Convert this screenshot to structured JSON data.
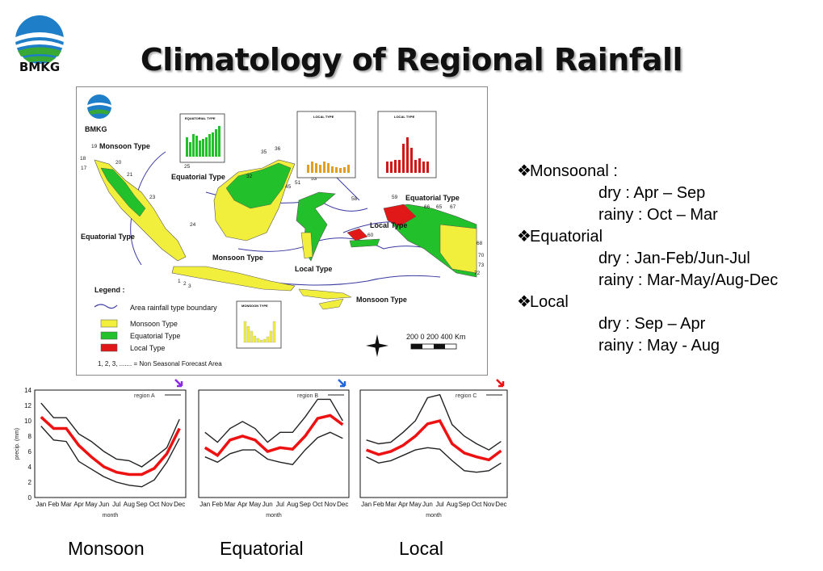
{
  "logo": {
    "text": "BMKG",
    "icon": "bmkg-logo-icon"
  },
  "title": "Climatology of Regional Rainfall",
  "map": {
    "logo_text": "BMKG",
    "labels": {
      "monsoon_nw": "Monsoon Type",
      "equatorial_w": "Equatorial Type",
      "equatorial_c": "Equatorial Type",
      "monsoon_c": "Monsoon Type",
      "local_sul": "Local Type",
      "local_pap": "Local Type",
      "equatorial_e": "Equatorial Type",
      "monsoon_se": "Monsoon Type"
    },
    "inset_titles": [
      "EQUATORIAL TYPE",
      "LOCAL TYPE",
      "LOCAL TYPE",
      "MONSOON TYPE"
    ],
    "legend": {
      "title": "Legend :",
      "boundary": "Area rainfall type boundary",
      "monsoon": "Monsoon Type",
      "equatorial": "Equatorial Type",
      "local": "Local Type",
      "footnote": "1, 2, 3, ....... = Non Seasonal Forecast Area"
    },
    "scale": {
      "label": "200   0   200 400   Km"
    },
    "colors": {
      "monsoon": "#f2ee3c",
      "equatorial": "#22c02a",
      "local": "#e01818",
      "boundary": "#3a3aa0"
    }
  },
  "description": [
    {
      "kind": "heading",
      "text": "Monsoonal :"
    },
    {
      "kind": "sub",
      "text": "dry : Apr – Sep"
    },
    {
      "kind": "sub",
      "text": "rainy : Oct – Mar"
    },
    {
      "kind": "heading",
      "text": "Equatorial"
    },
    {
      "kind": "sub",
      "text": "dry : Jan-Feb/Jun-Jul"
    },
    {
      "kind": "sub",
      "text": "rainy : Mar-May/Aug-Dec"
    },
    {
      "kind": "heading",
      "text": "Local"
    },
    {
      "kind": "sub",
      "text": "dry : Sep – Apr"
    },
    {
      "kind": "sub",
      "text": "rainy : May - Aug"
    }
  ],
  "captions": [
    "Monsoon",
    "Equatorial",
    "Local"
  ],
  "chart_data": [
    {
      "type": "line",
      "legend": "region A",
      "arrow_color": "#8a2be2",
      "xlabel": "month",
      "ylabel": "precip. (mm)",
      "ylim": [
        0,
        14
      ],
      "yticks": [
        0,
        2,
        4,
        6,
        8,
        10,
        12,
        14
      ],
      "categories": [
        "Jan",
        "Feb",
        "Mar",
        "Apr",
        "May",
        "Jun",
        "Jul",
        "Aug",
        "Sep",
        "Oct",
        "Nov",
        "Dec"
      ],
      "series": [
        {
          "color": "#222222",
          "values": [
            12.3,
            10.4,
            10.4,
            8.3,
            7.3,
            6.0,
            5.0,
            4.8,
            4.0,
            5.2,
            6.5,
            10.2
          ]
        },
        {
          "color": "#ee1111",
          "values": [
            10.5,
            9.0,
            9.0,
            6.8,
            5.3,
            4.0,
            3.3,
            3.0,
            3.0,
            3.8,
            5.7,
            9.0
          ]
        },
        {
          "color": "#222222",
          "values": [
            9.3,
            7.5,
            7.3,
            4.7,
            3.7,
            2.7,
            2.0,
            1.6,
            1.4,
            2.3,
            4.6,
            7.7
          ]
        }
      ]
    },
    {
      "type": "line",
      "legend": "region B",
      "arrow_color": "#2266dd",
      "xlabel": "month",
      "ylabel": "",
      "ylim": [
        0,
        14
      ],
      "yticks": [],
      "categories": [
        "Jan",
        "Feb",
        "Mar",
        "Apr",
        "May",
        "Jun",
        "Jul",
        "Aug",
        "Sep",
        "Oct",
        "Nov",
        "Dec"
      ],
      "series": [
        {
          "color": "#222222",
          "values": [
            8.5,
            7.2,
            9.0,
            9.9,
            9.0,
            7.2,
            8.5,
            8.5,
            10.5,
            12.8,
            12.8,
            10.0
          ]
        },
        {
          "color": "#ee1111",
          "values": [
            6.5,
            5.5,
            7.5,
            8.0,
            7.5,
            6.0,
            6.5,
            6.3,
            8.0,
            10.3,
            10.7,
            9.5
          ]
        },
        {
          "color": "#222222",
          "values": [
            5.3,
            4.6,
            5.7,
            6.2,
            6.2,
            5.0,
            4.6,
            4.3,
            6.2,
            7.8,
            8.5,
            7.7
          ]
        }
      ]
    },
    {
      "type": "line",
      "legend": "region C",
      "arrow_color": "#ee1111",
      "xlabel": "month",
      "ylabel": "",
      "ylim": [
        0,
        14
      ],
      "yticks": [],
      "categories": [
        "Jan",
        "Feb",
        "Mar",
        "Apr",
        "May",
        "Jun",
        "Jul",
        "Aug",
        "Sep",
        "Oct",
        "Nov",
        "Dec"
      ],
      "series": [
        {
          "color": "#222222",
          "values": [
            7.5,
            7.0,
            7.2,
            8.5,
            10.0,
            13.0,
            13.4,
            9.5,
            8.0,
            7.0,
            6.2,
            7.3
          ]
        },
        {
          "color": "#ee1111",
          "values": [
            6.2,
            5.6,
            6.0,
            6.8,
            8.0,
            9.6,
            10.0,
            7.0,
            5.8,
            5.3,
            4.9,
            6.1
          ]
        },
        {
          "color": "#222222",
          "values": [
            5.3,
            4.5,
            4.8,
            5.5,
            6.2,
            6.5,
            6.3,
            4.8,
            3.5,
            3.3,
            3.5,
            4.5
          ]
        }
      ]
    }
  ]
}
